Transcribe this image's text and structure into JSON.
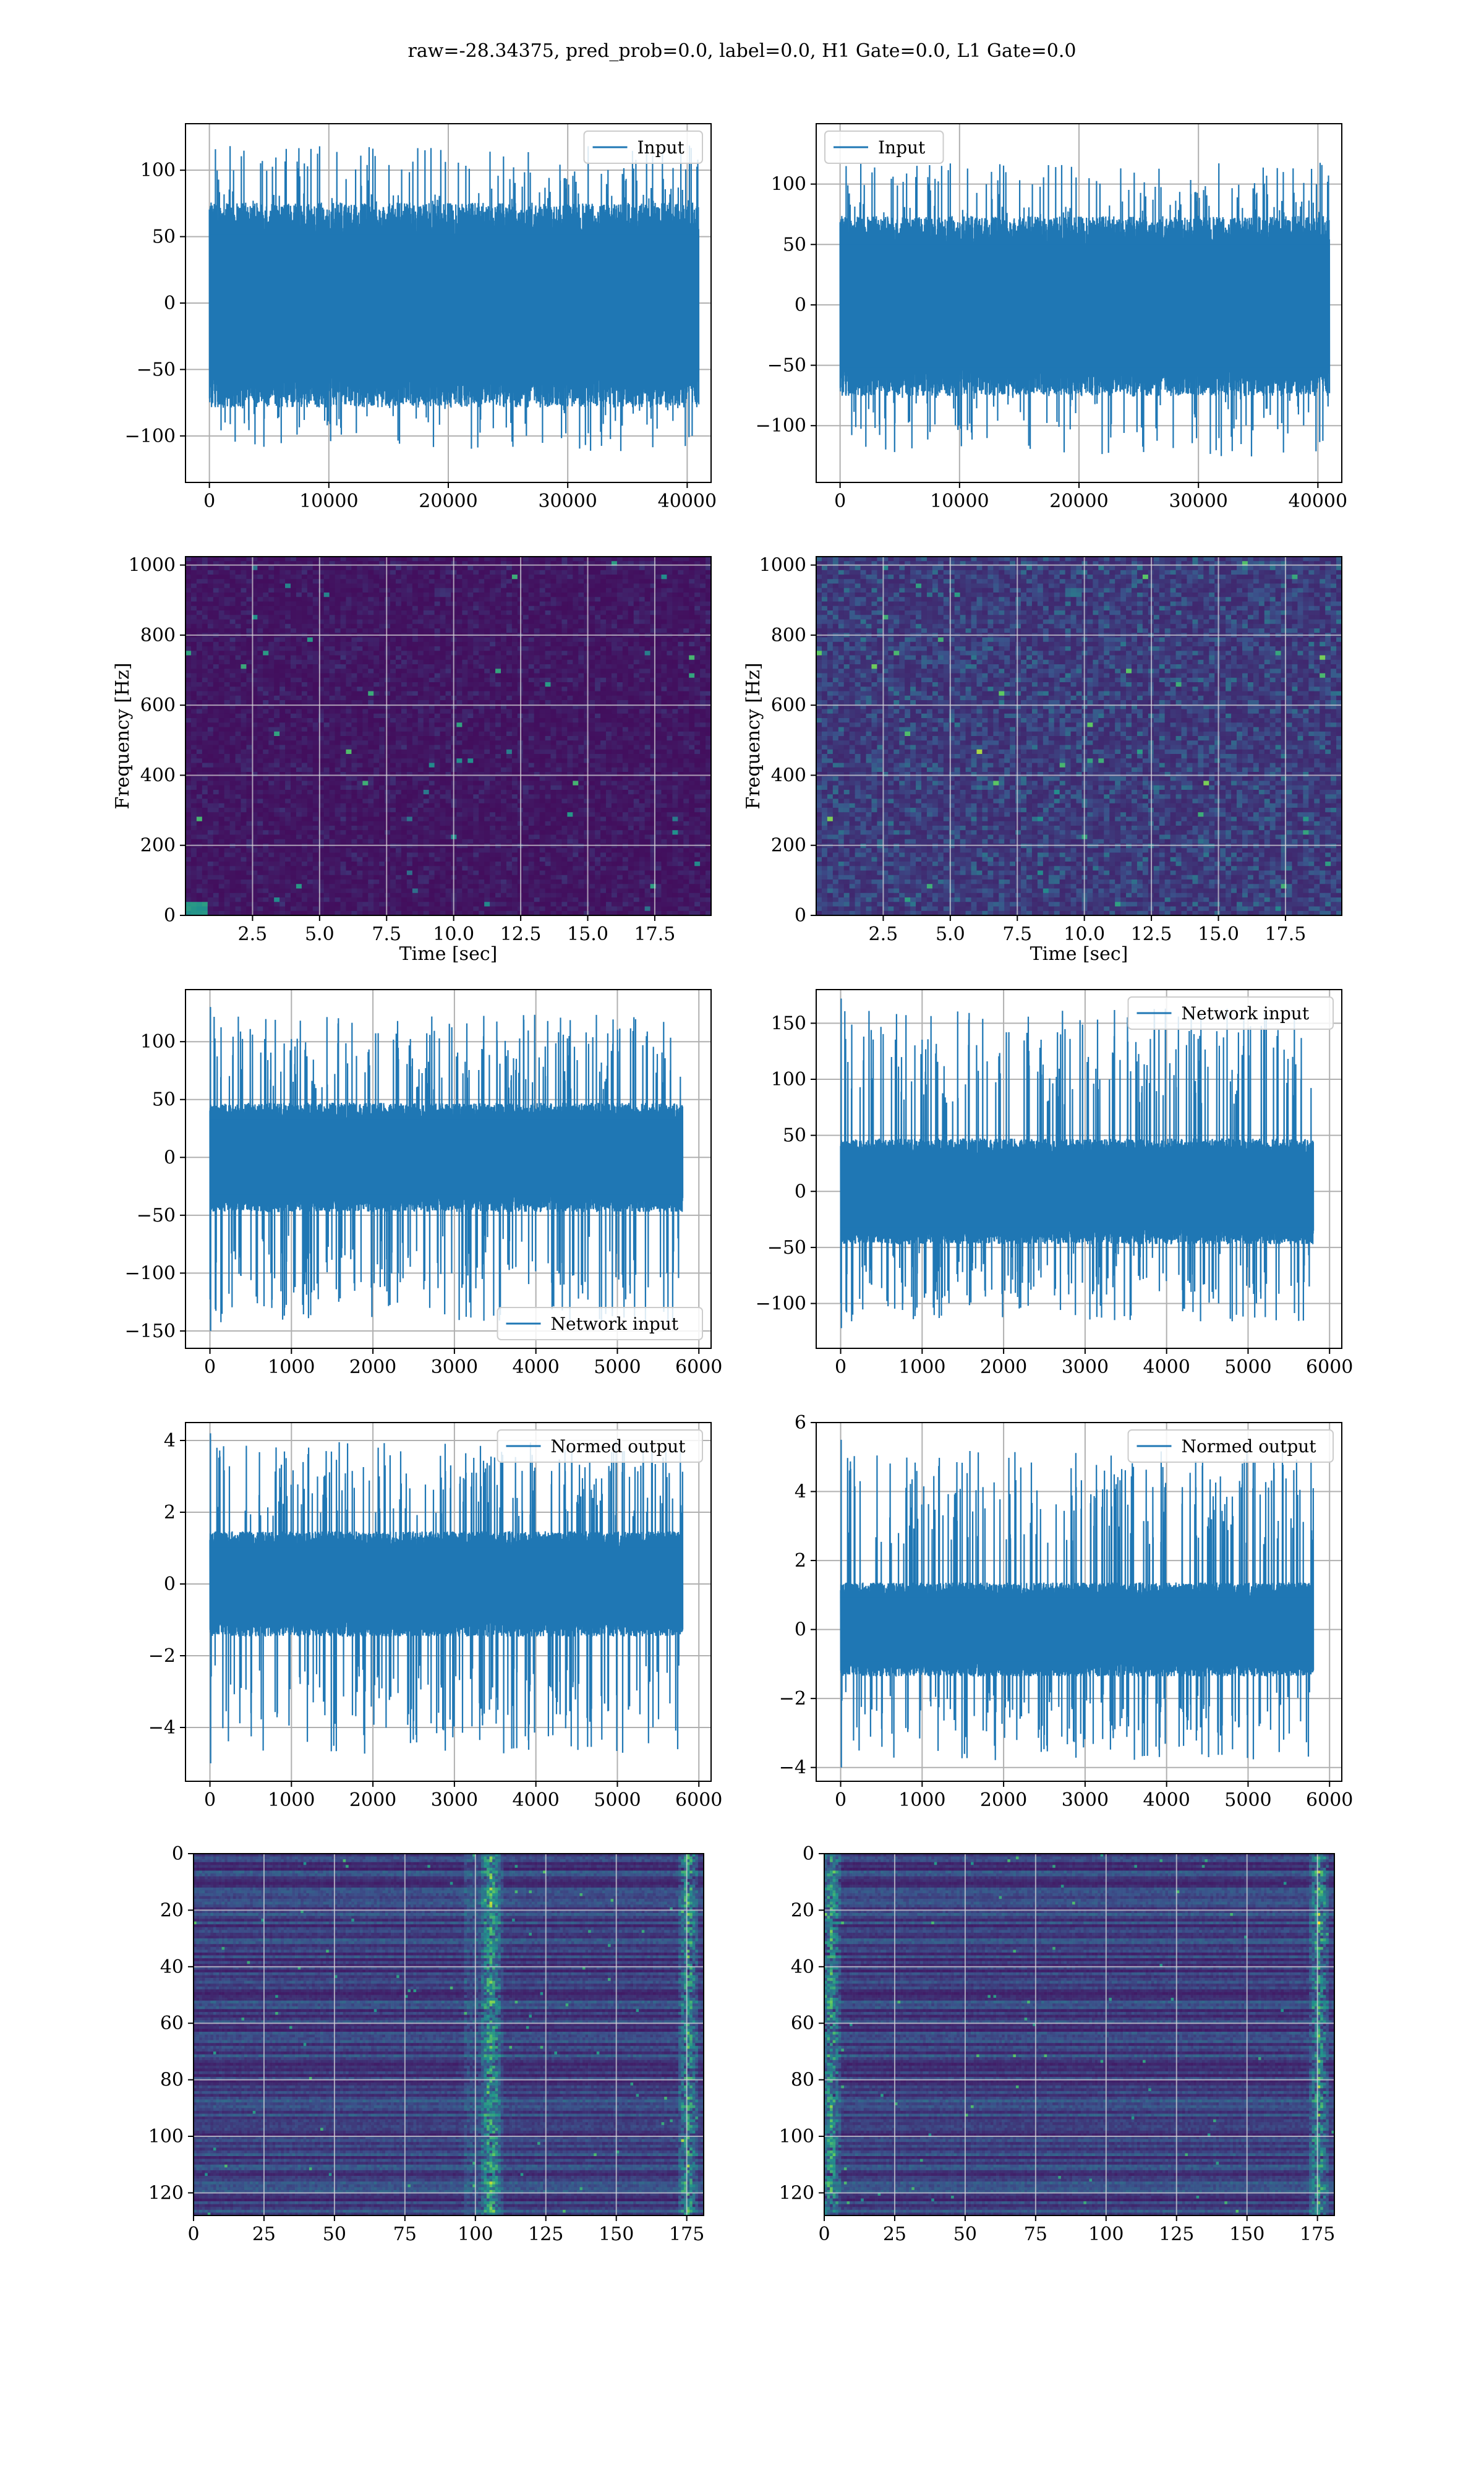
{
  "figure": {
    "suptitle": "raw=-28.34375, pred_prob=0.0, label=0.0, H1 Gate=0.0, L1 Gate=0.0",
    "colors": {
      "line": "#1f77b4",
      "grid": "#b0b0b0",
      "axes": "#000000",
      "viridis": [
        "#440154",
        "#3b528b",
        "#21918c",
        "#5ec962",
        "#fde725"
      ]
    }
  },
  "chart_data": [
    {
      "id": "input-h1",
      "type": "line",
      "title": "",
      "series": [
        {
          "name": "Input"
        }
      ],
      "legend": "upper right",
      "xlim": [
        -2000,
        42000
      ],
      "ylim": [
        -135,
        135
      ],
      "xticks": [
        0,
        10000,
        20000,
        30000,
        40000
      ],
      "yticks": [
        -100,
        -50,
        0,
        50,
        100
      ],
      "signal": {
        "n": 40960,
        "start": 0,
        "end": 40960,
        "env": [
          -75,
          72
        ],
        "peaks": [
          -118,
          125
        ]
      },
      "grid": true
    },
    {
      "id": "input-l1",
      "type": "line",
      "title": "",
      "series": [
        {
          "name": "Input"
        }
      ],
      "legend": "upper left",
      "xlim": [
        -2000,
        42000
      ],
      "ylim": [
        -147,
        150
      ],
      "xticks": [
        0,
        10000,
        20000,
        30000,
        40000
      ],
      "yticks": [
        -100,
        -50,
        0,
        50,
        100
      ],
      "signal": {
        "n": 40960,
        "start": 0,
        "end": 40960,
        "env": [
          -72,
          70
        ],
        "peaks": [
          -133,
          124
        ]
      },
      "grid": true
    },
    {
      "id": "spectrogram-h1",
      "type": "heatmap",
      "title": "",
      "xlabel": "Time [sec]",
      "ylabel": "Frequency [Hz]",
      "xlim": [
        0,
        19.6
      ],
      "ylim": [
        0,
        1024
      ],
      "xticks": [
        2.5,
        5.0,
        7.5,
        10.0,
        12.5,
        15.0,
        17.5
      ],
      "yticks": [
        0,
        200,
        400,
        600,
        800,
        1000
      ],
      "colormap": "viridis",
      "intensity": "low",
      "grid": true
    },
    {
      "id": "spectrogram-l1",
      "type": "heatmap",
      "title": "",
      "xlabel": "Time [sec]",
      "ylabel": "Frequency [Hz]",
      "xlim": [
        0,
        19.6
      ],
      "ylim": [
        0,
        1024
      ],
      "xticks": [
        2.5,
        5.0,
        7.5,
        10.0,
        12.5,
        15.0,
        17.5
      ],
      "yticks": [
        0,
        200,
        400,
        600,
        800,
        1000
      ],
      "colormap": "viridis",
      "intensity": "medium",
      "grid": true
    },
    {
      "id": "network-input-h1",
      "type": "line",
      "title": "",
      "series": [
        {
          "name": "Network input"
        }
      ],
      "legend": "lower right",
      "xlim": [
        -300,
        6150
      ],
      "ylim": [
        -165,
        145
      ],
      "xticks": [
        0,
        1000,
        2000,
        3000,
        4000,
        5000,
        6000
      ],
      "yticks": [
        -150,
        -100,
        -50,
        0,
        50,
        100
      ],
      "signal": {
        "n": 5800,
        "start": 0,
        "end": 5800,
        "env": [
          -45,
          45
        ],
        "peaks": [
          -150,
          130
        ]
      },
      "grid": true
    },
    {
      "id": "network-input-l1",
      "type": "line",
      "title": "",
      "series": [
        {
          "name": "Network input"
        }
      ],
      "legend": "upper right",
      "xlim": [
        -300,
        6150
      ],
      "ylim": [
        -140,
        180
      ],
      "xticks": [
        0,
        1000,
        2000,
        3000,
        4000,
        5000,
        6000
      ],
      "yticks": [
        -100,
        -50,
        0,
        50,
        100,
        150
      ],
      "signal": {
        "n": 5800,
        "start": 0,
        "end": 5800,
        "env": [
          -45,
          45
        ],
        "peaks": [
          -122,
          172
        ]
      },
      "grid": true
    },
    {
      "id": "normed-output-h1",
      "type": "line",
      "title": "",
      "series": [
        {
          "name": "Normed output"
        }
      ],
      "legend": "upper right",
      "xlim": [
        -300,
        6150
      ],
      "ylim": [
        -5.5,
        4.5
      ],
      "xticks": [
        0,
        1000,
        2000,
        3000,
        4000,
        5000,
        6000
      ],
      "yticks": [
        -4,
        -2,
        0,
        2,
        4
      ],
      "signal": {
        "n": 5800,
        "start": 0,
        "end": 5800,
        "env": [
          -1.4,
          1.4
        ],
        "peaks": [
          -5.0,
          4.2
        ]
      },
      "grid": true
    },
    {
      "id": "normed-output-l1",
      "type": "line",
      "title": "",
      "series": [
        {
          "name": "Normed output"
        }
      ],
      "legend": "upper right",
      "xlim": [
        -300,
        6150
      ],
      "ylim": [
        -4.4,
        6.0
      ],
      "xticks": [
        0,
        1000,
        2000,
        3000,
        4000,
        5000,
        6000
      ],
      "yticks": [
        -4,
        -2,
        0,
        2,
        4,
        6
      ],
      "signal": {
        "n": 5800,
        "start": 0,
        "end": 5800,
        "env": [
          -1.3,
          1.3
        ],
        "peaks": [
          -4.0,
          5.5
        ]
      },
      "grid": true
    },
    {
      "id": "features-h1",
      "type": "heatmap",
      "title": "",
      "xlim": [
        0,
        181
      ],
      "ylim": [
        128,
        0
      ],
      "xticks": [
        0,
        25,
        50,
        75,
        100,
        125,
        150,
        175
      ],
      "yticks": [
        0,
        20,
        40,
        60,
        80,
        100,
        120
      ],
      "colormap": "viridis",
      "bright_columns": [
        105,
        175
      ],
      "grid": true
    },
    {
      "id": "features-l1",
      "type": "heatmap",
      "title": "",
      "xlim": [
        0,
        181
      ],
      "ylim": [
        128,
        0
      ],
      "xticks": [
        0,
        25,
        50,
        75,
        100,
        125,
        150,
        175
      ],
      "yticks": [
        0,
        20,
        40,
        60,
        80,
        100,
        120
      ],
      "colormap": "viridis",
      "bright_columns": [
        2,
        175
      ],
      "grid": true
    }
  ]
}
